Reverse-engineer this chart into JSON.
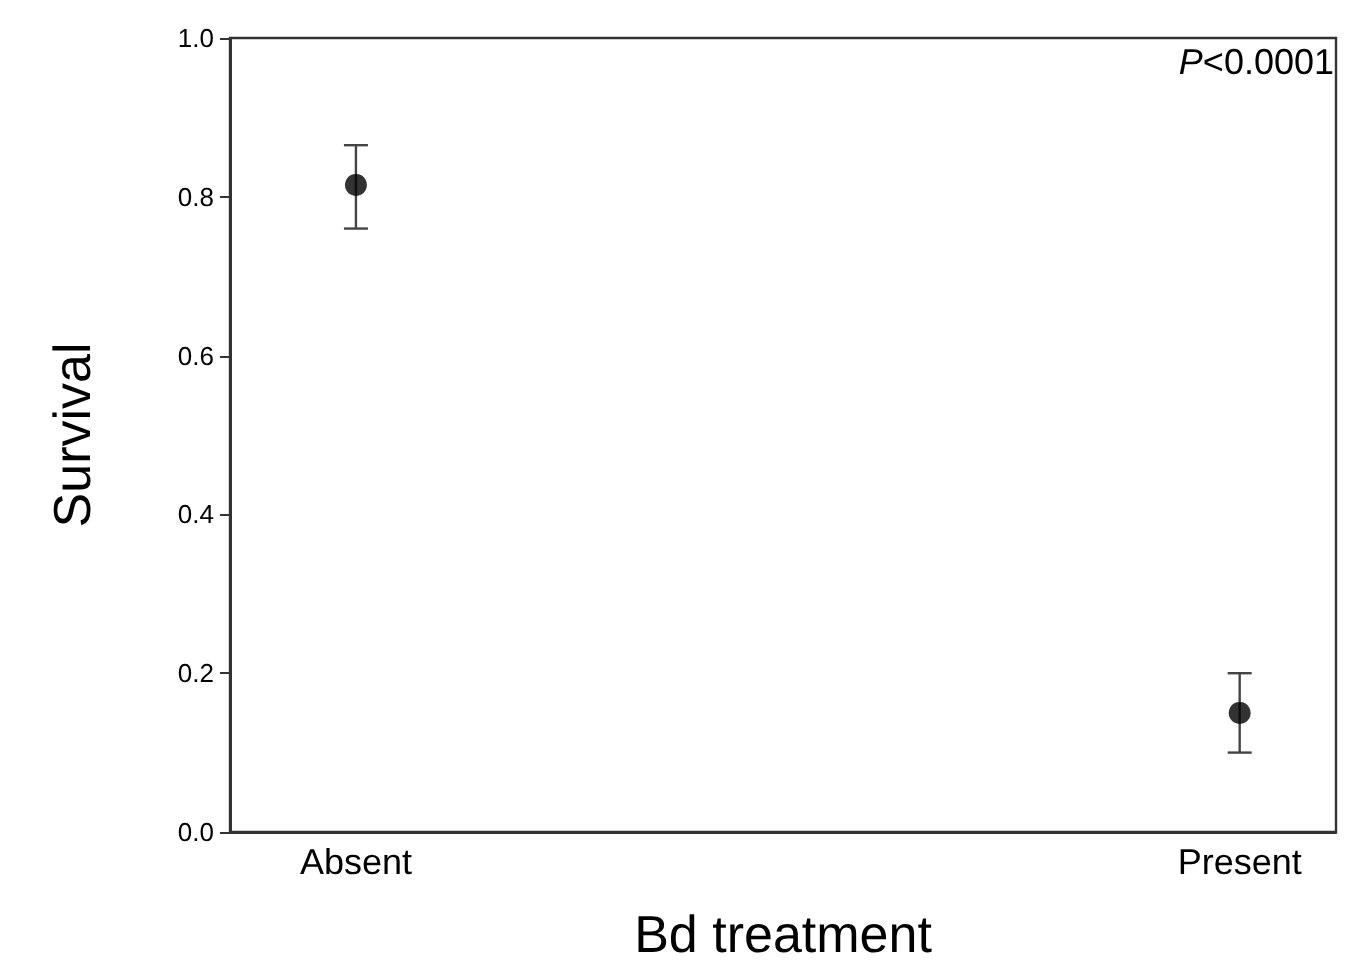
{
  "chart_data": {
    "type": "scatter",
    "xlabel": "Bd treatment",
    "ylabel": "Survival",
    "categories": [
      "Absent",
      "Present"
    ],
    "series": [
      {
        "color": "#000000",
        "values": [
          0.815,
          0.15
        ],
        "errors": [
          [
            0.76,
            0.865
          ],
          [
            0.1,
            0.2
          ]
        ]
      }
    ],
    "marker": "circle",
    "grid": false,
    "ylim": [
      0,
      1
    ],
    "yticks": [
      {
        "value": 0,
        "label": "0.0"
      },
      {
        "value": 0.2,
        "label": "0.2"
      },
      {
        "value": 0.4,
        "label": "0.4"
      },
      {
        "value": 0.6,
        "label": "0.6"
      },
      {
        "value": 0.8,
        "label": "0.8"
      },
      {
        "value": 1,
        "label": "1.0"
      }
    ],
    "annotations": [
      "P<0.0001"
    ]
  }
}
